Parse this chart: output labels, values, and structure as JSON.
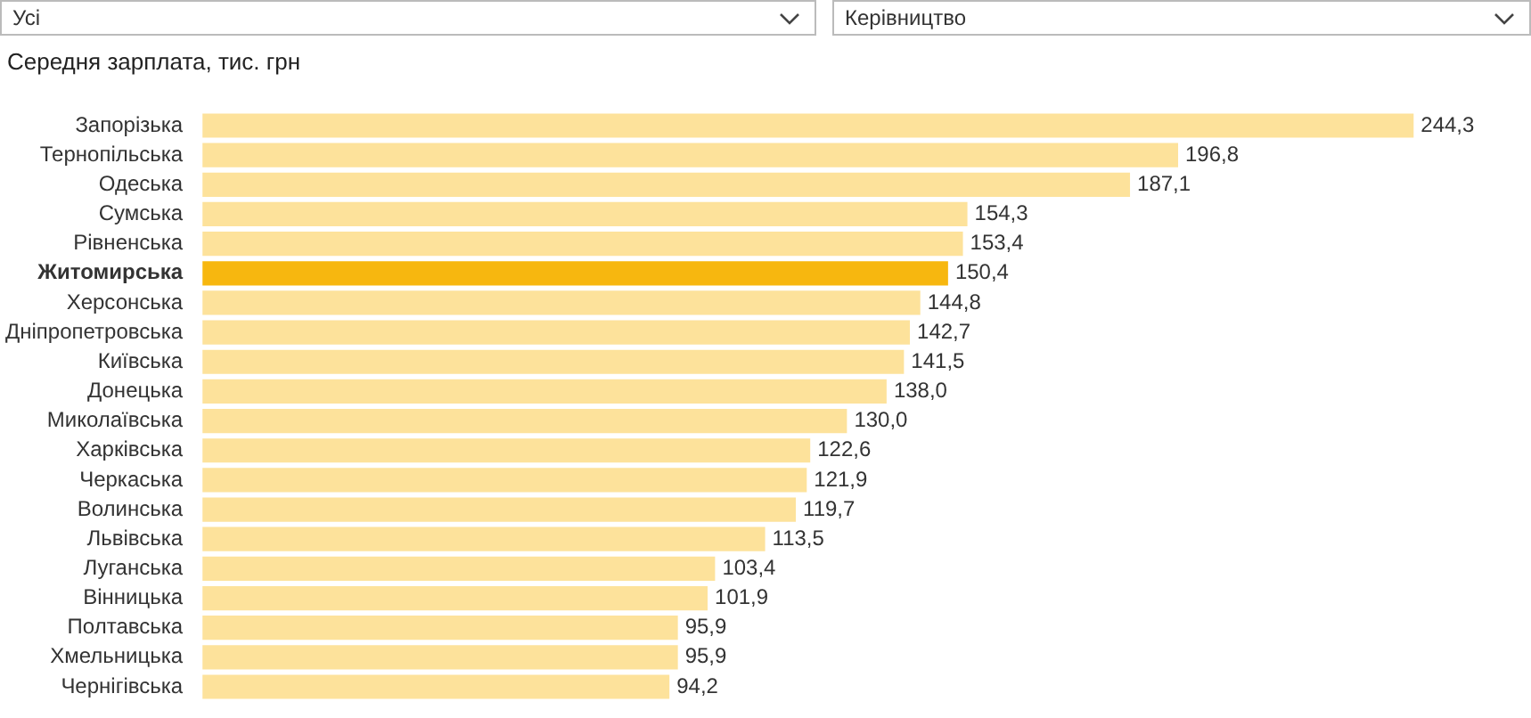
{
  "chart_data": {
    "type": "bar",
    "orientation": "horizontal",
    "title": "Середня зарплата, тис. грн",
    "annotations": [
      "Усі",
      "Керівництво"
    ],
    "categories": [
      "Запорізька",
      "Тернопільська",
      "Одеська",
      "Сумська",
      "Рівненська",
      "Житомирська",
      "Херсонська",
      "Дніпропетровська",
      "Київська",
      "Донецька",
      "Миколаївська",
      "Харківська",
      "Черкаська",
      "Волинська",
      "Львівська",
      "Луганська",
      "Вінницька",
      "Полтавська",
      "Хмельницька",
      "Чернігівська"
    ],
    "values": [
      244.3,
      196.8,
      187.1,
      154.3,
      153.4,
      150.4,
      144.8,
      142.7,
      141.5,
      138.0,
      130.0,
      122.6,
      121.9,
      119.7,
      113.5,
      103.4,
      101.9,
      95.9,
      95.9,
      94.2
    ],
    "value_labels": [
      "244,3",
      "196,8",
      "187,1",
      "154,3",
      "153,4",
      "150,4",
      "144,8",
      "142,7",
      "141,5",
      "138,0",
      "130,0",
      "122,6",
      "121,9",
      "119,7",
      "113,5",
      "103,4",
      "101,9",
      "95,9",
      "95,9",
      "94,2"
    ],
    "colors": [
      "#fde29b",
      "#fde29b",
      "#fde29b",
      "#fde29b",
      "#fde29b",
      "#f7b70f",
      "#fde29b",
      "#fde29b",
      "#fde29b",
      "#fde29b",
      "#fde29b",
      "#fde29b",
      "#fde29b",
      "#fde29b",
      "#fde29b",
      "#fde29b",
      "#fde29b",
      "#fde29b",
      "#fde29b",
      "#fde29b"
    ],
    "legend": false
  }
}
